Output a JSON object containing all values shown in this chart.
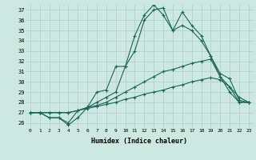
{
  "xlabel": "Humidex (Indice chaleur)",
  "bg_color": "#cce8e0",
  "grid_color": "#aacec8",
  "line_color": "#1a6858",
  "xlim": [
    -0.5,
    23.5
  ],
  "ylim": [
    25.5,
    37.5
  ],
  "xticks": [
    0,
    1,
    2,
    3,
    4,
    5,
    6,
    7,
    8,
    9,
    10,
    11,
    12,
    13,
    14,
    15,
    16,
    17,
    18,
    19,
    20,
    21,
    22,
    23
  ],
  "yticks": [
    26,
    27,
    28,
    29,
    30,
    31,
    32,
    33,
    34,
    35,
    36,
    37
  ],
  "lines": [
    [
      27.0,
      27.0,
      26.5,
      26.5,
      25.8,
      26.5,
      27.5,
      29.0,
      29.2,
      31.5,
      31.5,
      33.0,
      36.0,
      37.0,
      37.2,
      35.0,
      36.8,
      35.5,
      34.5,
      32.5,
      30.5,
      29.5,
      28.0,
      28.0
    ],
    [
      27.0,
      27.0,
      26.5,
      26.5,
      26.0,
      27.2,
      27.5,
      28.0,
      28.5,
      29.0,
      31.5,
      34.5,
      36.5,
      37.5,
      36.5,
      35.0,
      35.5,
      35.0,
      34.0,
      32.5,
      30.8,
      30.3,
      28.2,
      28.0
    ],
    [
      27.0,
      27.0,
      27.0,
      27.0,
      27.0,
      27.2,
      27.5,
      27.7,
      28.0,
      28.5,
      29.0,
      29.5,
      30.0,
      30.5,
      31.0,
      31.2,
      31.5,
      31.8,
      32.0,
      32.2,
      30.5,
      29.0,
      28.0,
      28.0
    ],
    [
      27.0,
      27.0,
      27.0,
      27.0,
      27.0,
      27.2,
      27.4,
      27.6,
      27.8,
      28.0,
      28.3,
      28.5,
      28.8,
      29.0,
      29.2,
      29.5,
      29.7,
      30.0,
      30.2,
      30.4,
      30.2,
      29.5,
      28.5,
      28.0
    ]
  ]
}
